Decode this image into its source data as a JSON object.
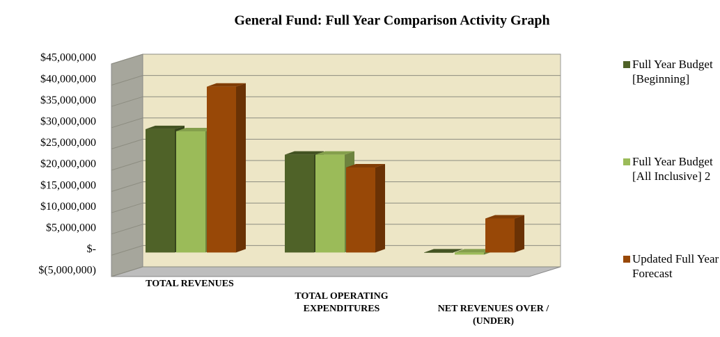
{
  "chart_data": {
    "type": "bar3d",
    "title": "General Fund: Full Year Comparison Activity Graph",
    "categories": [
      "TOTAL REVENUES",
      "TOTAL OPERATING EXPENDITURES",
      "NET REVENUES OVER / (UNDER)"
    ],
    "series": [
      {
        "name": "Full Year Budget [Beginning]",
        "color": "#4f6228",
        "values": [
          29000000,
          23000000,
          0
        ]
      },
      {
        "name": "Full Year Budget [All Inclusive] 2",
        "color": "#9bbb59",
        "values": [
          28500000,
          23000000,
          -500000
        ]
      },
      {
        "name": "Updated Full Year Forecast",
        "color": "#984807",
        "values": [
          39000000,
          20000000,
          8000000
        ]
      }
    ],
    "ylim": [
      -5000000,
      45000000
    ],
    "yticks": [
      {
        "value": -5000000,
        "label": "$(5,000,000)"
      },
      {
        "value": 0,
        "label": "$-"
      },
      {
        "value": 5000000,
        "label": "$5,000,000"
      },
      {
        "value": 10000000,
        "label": "$10,000,000"
      },
      {
        "value": 15000000,
        "label": "$15,000,000"
      },
      {
        "value": 20000000,
        "label": "$20,000,000"
      },
      {
        "value": 25000000,
        "label": "$25,000,000"
      },
      {
        "value": 30000000,
        "label": "$30,000,000"
      },
      {
        "value": 35000000,
        "label": "$35,000,000"
      },
      {
        "value": 40000000,
        "label": "$40,000,000"
      },
      {
        "value": 45000000,
        "label": "$45,000,000"
      }
    ],
    "grid": true,
    "legend": "right"
  }
}
